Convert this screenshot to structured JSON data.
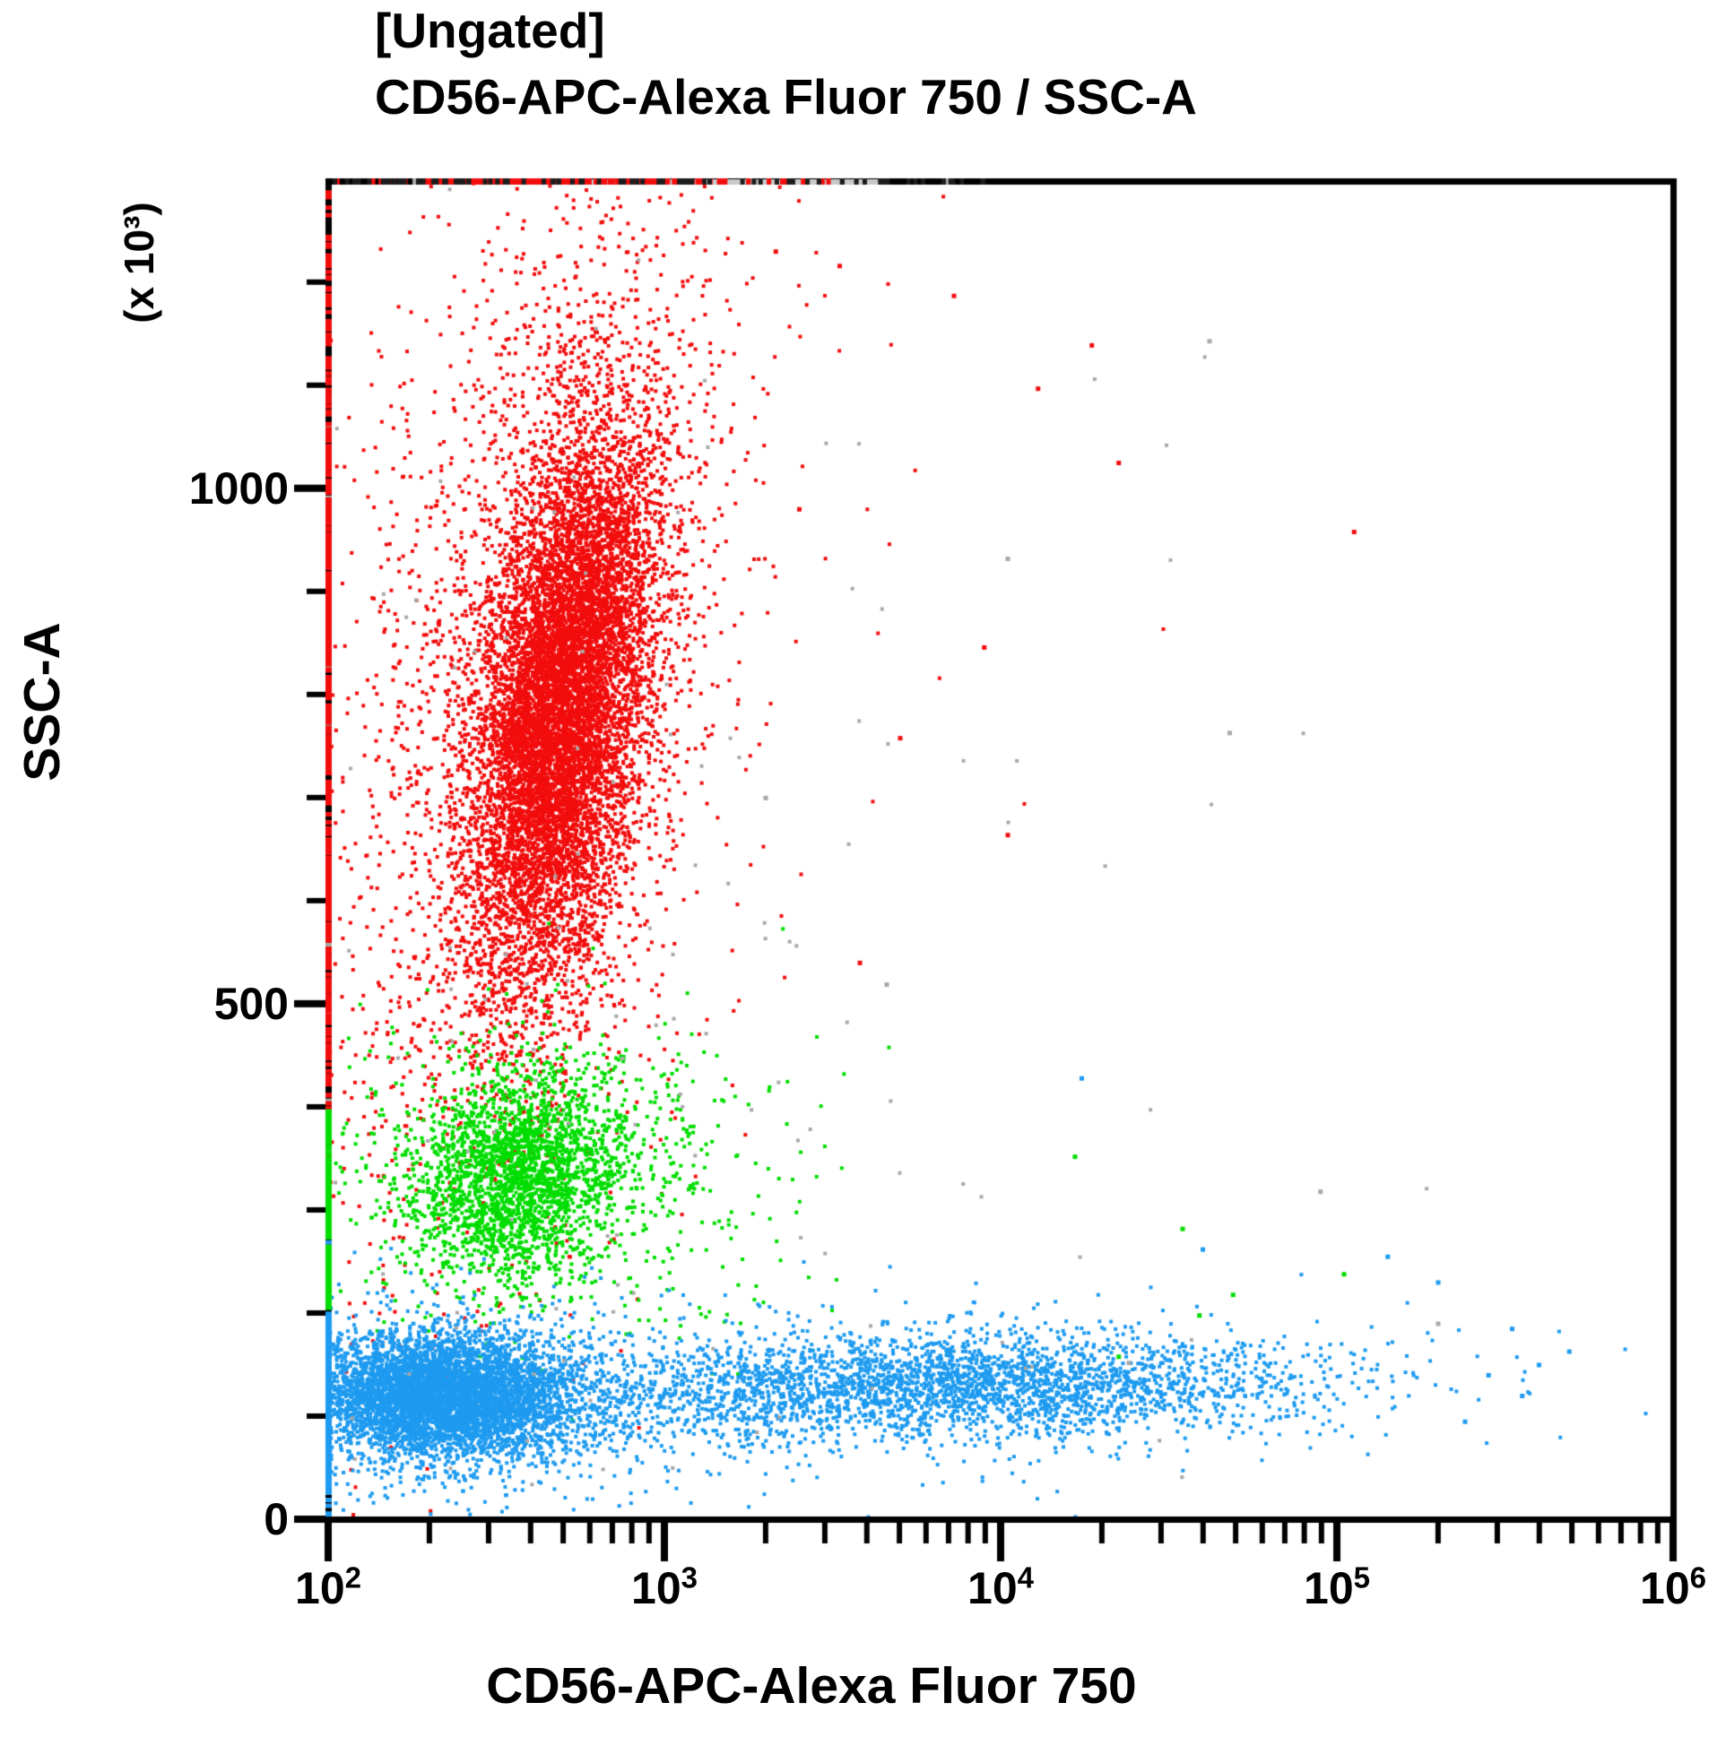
{
  "chart_data": {
    "type": "scatter",
    "title": "[Ungated]",
    "subtitle": "CD56-APC-Alexa Fluor 750 / SSC-A",
    "xlabel": "CD56-APC-Alexa Fluor 750",
    "ylabel": "SSC-A",
    "y_unit_multiplier": "(x 10³)",
    "x_scale": "log10",
    "x_log_range": [
      2,
      6
    ],
    "y_range_k": [
      0,
      1298
    ],
    "x_ticks": [
      {
        "base": "10",
        "exp": "2",
        "log": 2
      },
      {
        "base": "10",
        "exp": "3",
        "log": 3
      },
      {
        "base": "10",
        "exp": "4",
        "log": 4
      },
      {
        "base": "10",
        "exp": "5",
        "log": 5
      },
      {
        "base": "10",
        "exp": "6",
        "log": 6
      }
    ],
    "y_ticks": [
      {
        "label": "0",
        "value_k": 0
      },
      {
        "label": "500",
        "value_k": 500
      },
      {
        "label": "1000",
        "value_k": 1000
      }
    ],
    "y_minor_step_k": 100,
    "grid": false,
    "legend": "none",
    "colors": {
      "red": "#f20d0d",
      "green": "#00dd00",
      "blue": "#1e9bf0",
      "gray": "#a8a8a8",
      "dark": "#1c1c1c",
      "border": "#000000",
      "top_strip": "#c9c9c9"
    },
    "dot_size_px": 4,
    "seed": 1337,
    "populations": [
      {
        "name": "granulocytes-core",
        "color": "red",
        "n": 8800,
        "cx_log": 2.7,
        "cy_k": 790,
        "sx_log": 0.13,
        "sy_k": 132,
        "corr": 0.45
      },
      {
        "name": "granulocytes-halo",
        "color": "red",
        "n": 3000,
        "cx_log": 2.6,
        "cy_k": 795,
        "sx_log": 0.285,
        "sy_k": 255,
        "corr": 0.35
      },
      {
        "name": "granulocytes-fringe",
        "color": "red",
        "n": 130,
        "cx_log": 2.75,
        "cy_k": 820,
        "sx_log": 0.5,
        "sy_k": 400,
        "corr": 0.2
      },
      {
        "name": "monocytes-core",
        "color": "green",
        "n": 2250,
        "cx_log": 2.565,
        "cy_k": 335,
        "sx_log": 0.16,
        "sy_k": 50,
        "corr": 0.15
      },
      {
        "name": "monocytes-halo",
        "color": "green",
        "n": 620,
        "cx_log": 2.7,
        "cy_k": 330,
        "sx_log": 0.34,
        "sy_k": 76,
        "corr": 0
      },
      {
        "name": "lymphocytes-cd56neg",
        "color": "blue",
        "n": 5200,
        "cx_log": 2.33,
        "cy_k": 120,
        "sx_log": 0.195,
        "sy_k": 29,
        "corr": 0
      },
      {
        "name": "lymphocytes-neg-halo",
        "color": "blue",
        "n": 850,
        "cx_log": 2.42,
        "cy_k": 112,
        "sx_log": 0.34,
        "sy_k": 50,
        "corr": 0
      },
      {
        "name": "lymphocytes-bridge",
        "color": "blue",
        "n": 700,
        "cx_log": 3.2,
        "cy_k": 120,
        "sx_log": 0.35,
        "sy_k": 28,
        "corr": 0
      },
      {
        "name": "lymphocytes-cd56pos",
        "color": "blue",
        "n": 2250,
        "cx_log": 3.98,
        "cy_k": 131,
        "sx_log": 0.47,
        "sy_k": 25,
        "corr": 0
      },
      {
        "name": "lymphocytes-pos-halo",
        "color": "blue",
        "n": 320,
        "cx_log": 4.05,
        "cy_k": 128,
        "sx_log": 0.7,
        "sy_k": 48,
        "corr": 0
      },
      {
        "name": "debris-ungated",
        "color": "gray",
        "n": 165,
        "cx_log": 2.95,
        "cy_k": 480,
        "sx_log": 0.78,
        "sy_k": 400,
        "corr": 0
      }
    ],
    "edge_piles": [
      {
        "name": "left-axis-pile-red",
        "edge": "left",
        "color": "red",
        "n": 430,
        "center_k": 800,
        "sigma_k": 300,
        "min_k": 400,
        "max_k": 1290
      },
      {
        "name": "left-axis-pile-green",
        "edge": "left",
        "color": "green",
        "n": 115,
        "center_k": 300,
        "sigma_k": 80,
        "min_k": 200,
        "max_k": 399
      },
      {
        "name": "left-axis-pile-blue",
        "edge": "left",
        "color": "blue",
        "n": 300,
        "center_k": 110,
        "sigma_k": 48,
        "min_k": 25,
        "max_k": 199
      },
      {
        "name": "top-axis-pile-red",
        "edge": "top",
        "color": "red",
        "n": 125,
        "center_log": 2.6,
        "sigma_log": 0.22,
        "min_log": 2.01,
        "max_log": 3.4
      },
      {
        "name": "top-axis-pile-dark",
        "edge": "top",
        "color": "dark",
        "n": 80,
        "center_log": 3.0,
        "sigma_log": 2.0,
        "min_log": 2.02,
        "max_log": 4.05
      }
    ],
    "top_border_strip_log": [
      2.7,
      3.64
    ],
    "outliers": [
      {
        "log_x": 3.52,
        "ssc_k": 1216,
        "color": "red"
      },
      {
        "log_x": 3.86,
        "ssc_k": 1187,
        "color": "red"
      },
      {
        "log_x": 4.27,
        "ssc_k": 1139,
        "color": "red"
      },
      {
        "log_x": 4.11,
        "ssc_k": 1097,
        "color": "red"
      },
      {
        "log_x": 4.35,
        "ssc_k": 1025,
        "color": "red"
      },
      {
        "log_x": 5.05,
        "ssc_k": 958,
        "color": "red"
      },
      {
        "log_x": 3.95,
        "ssc_k": 846,
        "color": "red"
      },
      {
        "log_x": 3.7,
        "ssc_k": 758,
        "color": "red"
      },
      {
        "log_x": 4.02,
        "ssc_k": 664,
        "color": "red"
      },
      {
        "log_x": 3.58,
        "ssc_k": 540,
        "color": "red"
      },
      {
        "log_x": 3.4,
        "ssc_k": 980,
        "color": "red"
      },
      {
        "log_x": 3.33,
        "ssc_k": 1230,
        "color": "red"
      },
      {
        "log_x": 4.62,
        "ssc_k": 1143,
        "color": "gray"
      },
      {
        "log_x": 4.02,
        "ssc_k": 932,
        "color": "gray"
      },
      {
        "log_x": 4.68,
        "ssc_k": 763,
        "color": "gray"
      },
      {
        "log_x": 3.66,
        "ssc_k": 519,
        "color": "gray"
      },
      {
        "log_x": 4.95,
        "ssc_k": 318,
        "color": "gray"
      },
      {
        "log_x": 4.38,
        "ssc_k": 152,
        "color": "gray"
      },
      {
        "log_x": 5.3,
        "ssc_k": 190,
        "color": "gray"
      },
      {
        "log_x": 3.3,
        "ssc_k": 700,
        "color": "gray"
      },
      {
        "log_x": 4.69,
        "ssc_k": 218,
        "color": "green"
      },
      {
        "log_x": 4.59,
        "ssc_k": 198,
        "color": "green"
      },
      {
        "log_x": 4.54,
        "ssc_k": 282,
        "color": "green"
      },
      {
        "log_x": 4.22,
        "ssc_k": 352,
        "color": "green"
      },
      {
        "log_x": 5.02,
        "ssc_k": 238,
        "color": "green"
      },
      {
        "log_x": 4.35,
        "ssc_k": 158,
        "color": "green"
      },
      {
        "log_x": 5.69,
        "ssc_k": 163,
        "color": "blue"
      },
      {
        "log_x": 5.6,
        "ssc_k": 150,
        "color": "blue"
      },
      {
        "log_x": 5.52,
        "ssc_k": 185,
        "color": "blue"
      },
      {
        "log_x": 5.45,
        "ssc_k": 140,
        "color": "blue"
      },
      {
        "log_x": 5.3,
        "ssc_k": 230,
        "color": "blue"
      },
      {
        "log_x": 4.24,
        "ssc_k": 428,
        "color": "blue"
      },
      {
        "log_x": 4.6,
        "ssc_k": 262,
        "color": "blue"
      },
      {
        "log_x": 5.15,
        "ssc_k": 255,
        "color": "blue"
      },
      {
        "log_x": 5.55,
        "ssc_k": 120,
        "color": "blue"
      },
      {
        "log_x": 5.38,
        "ssc_k": 95,
        "color": "blue"
      }
    ]
  }
}
